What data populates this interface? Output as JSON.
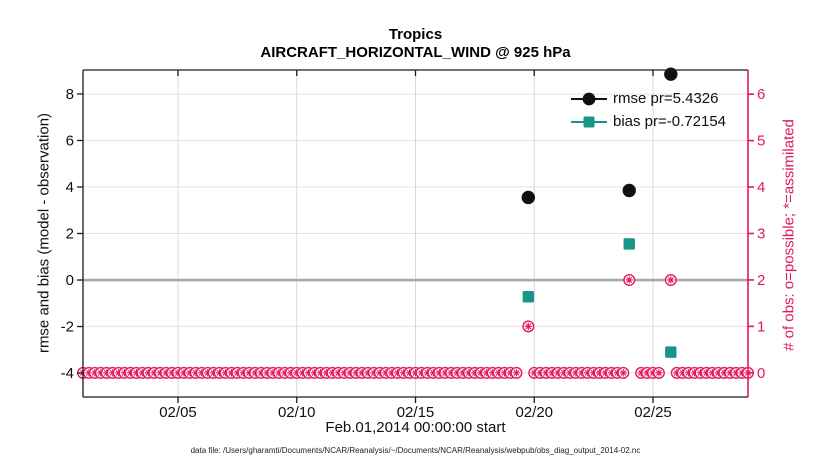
{
  "figure": {
    "footer": "data file: /Users/gharamti/Documents/NCAR/Reanalysis/~/Documents/NCAR/Reanalysis/webpub/obs_diag_output_2014-02.nc"
  },
  "colors": {
    "rmse_black": "#111111",
    "bias_teal": "#189489",
    "obs_pink": "#e01a5c",
    "grid_pink": "#f6d9e2",
    "grid_gray": "#d8d8d8",
    "zero_gray": "#a9a9a9",
    "spine_dark": "#1a1a1a"
  },
  "chart_data": {
    "type": "scatter",
    "title": "Tropics",
    "subtitle": "AIRCRAFT_HORIZONTAL_WIND @ 925 hPa",
    "grid": true,
    "legend_position": "top-right",
    "x_axis": {
      "label": "Feb.01,2014 00:00:00 start",
      "range": [
        1,
        29
      ],
      "ticks": [
        5,
        10,
        15,
        20,
        25
      ],
      "tick_labels": [
        "02/05",
        "02/10",
        "02/15",
        "02/20",
        "02/25"
      ]
    },
    "y_left": {
      "label": "rmse and bias (model - observation)",
      "range": [
        -5.03,
        9.03
      ],
      "ticks": [
        8,
        6,
        4,
        2,
        0,
        -2,
        -4
      ],
      "tick_labels": [
        "8",
        "6",
        "4",
        "2",
        "0",
        "-2",
        "-4"
      ]
    },
    "y_right": {
      "label": "# of obs: o=possible; *=assimilated",
      "range": [
        -0.52,
        6.52
      ],
      "ticks": [
        6,
        5,
        4,
        3,
        2,
        1,
        0
      ],
      "tick_labels": [
        "6",
        "5",
        "4",
        "3",
        "2",
        "1",
        "0"
      ]
    },
    "zero_line": {
      "value": 0
    },
    "series": [
      {
        "name": "rmse pr=5.4326",
        "marker": "circle",
        "axis": "left",
        "points": [
          [
            19.75,
            3.55
          ],
          [
            24.0,
            3.85
          ],
          [
            25.75,
            8.85
          ]
        ]
      },
      {
        "name": "bias pr=-0.72154",
        "marker": "square",
        "axis": "left",
        "points": [
          [
            19.75,
            -0.72
          ],
          [
            24.0,
            1.55
          ],
          [
            25.75,
            -3.1
          ]
        ]
      }
    ],
    "obs_counts": {
      "marker": "circle-asterisk",
      "axis": "right",
      "lifted_points": [
        [
          19.75,
          1
        ],
        [
          24.0,
          2
        ],
        [
          25.75,
          2
        ]
      ],
      "baseline": {
        "value": 0,
        "start_day": 1.0,
        "end_day": 29.0,
        "step_days": 0.25,
        "skip_days": [
          19.5,
          19.75,
          24.0,
          24.25,
          25.5,
          25.75
        ]
      }
    }
  }
}
